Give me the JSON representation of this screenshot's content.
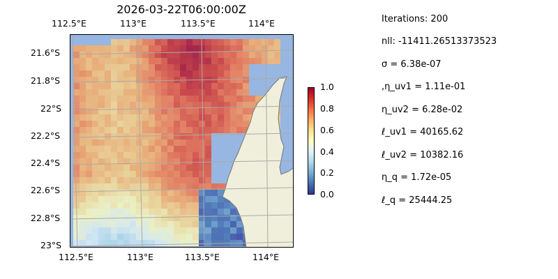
{
  "title": "2026-03-22T06:00:00Z",
  "lon_ticks_top": [
    "112.5°E",
    "113°E",
    "113.5°E",
    "114°E"
  ],
  "lon_ticks_bottom": [
    "112.5°E",
    "113°E",
    "113.5°E",
    "114°E"
  ],
  "lat_ticks": [
    "21.6°S",
    "21.8°S",
    "22°S",
    "22.2°S",
    "22.4°S",
    "22.6°S",
    "22.8°S",
    "23°S"
  ],
  "colorbar": {
    "colormap": "RdYlBu_r",
    "range": [
      0.0,
      1.0
    ],
    "ticks": [
      "1.0",
      "0.8",
      "0.6",
      "0.4",
      "0.2",
      "0.0"
    ]
  },
  "colors": {
    "ocean": "#97b6e1",
    "land": "#efefdb"
  },
  "stats": [
    "Iterations: 200",
    "nll: -11411.26513373523",
    "σ = 6.38e-07",
    ",η_uv1 = 1.11e-01",
    "η_uv2 = 6.28e-02",
    "ℓ_uv1 = 40165.62",
    "ℓ_uv2 = 10382.16",
    "η_q = 1.72e-05",
    "ℓ_q = 25444.25"
  ]
}
